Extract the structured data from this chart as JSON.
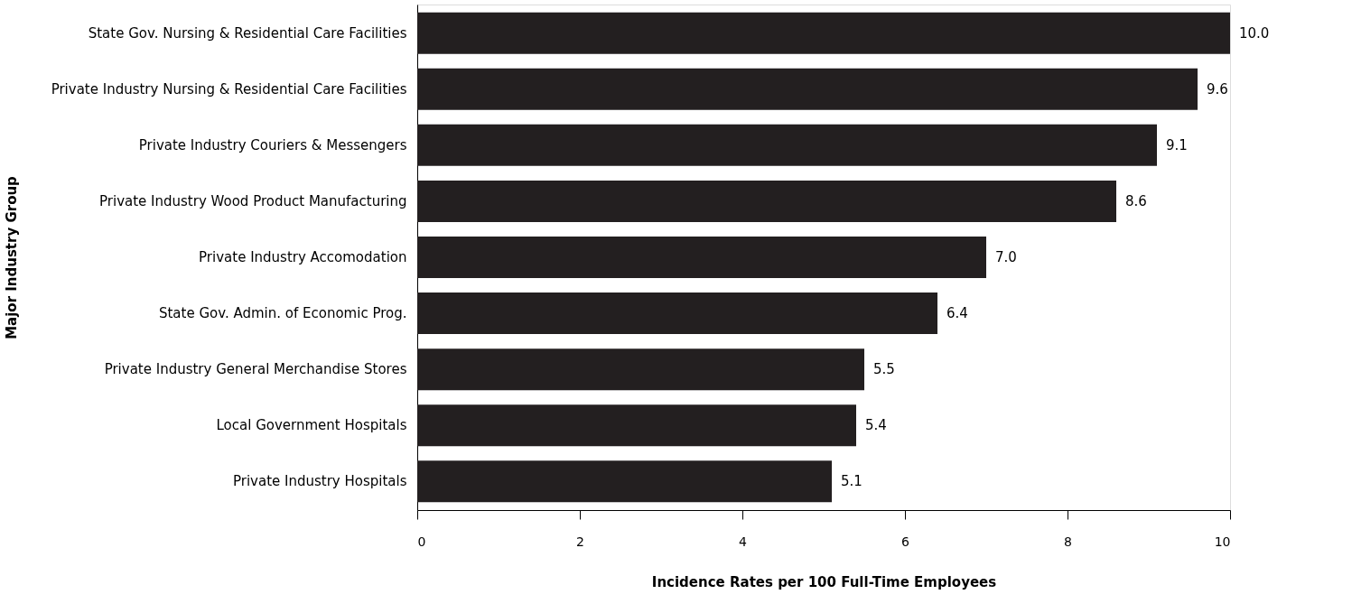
{
  "chart_data": {
    "type": "bar",
    "orientation": "horizontal",
    "xlabel": "Incidence Rates per 100 Full-Time Employees",
    "ylabel": "Major Industry Group",
    "categories": [
      "State Gov. Nursing & Residential Care Facilities",
      "Private Industry Nursing & Residential Care Facilities",
      "Private Industry Couriers & Messengers",
      "Private Industry Wood Product Manufacturing",
      "Private Industry Accomodation",
      "State Gov. Admin. of Economic Prog.",
      "Private Industry General Merchandise Stores",
      "Local Government Hospitals",
      "Private Industry Hospitals"
    ],
    "values": [
      10.0,
      9.6,
      9.1,
      8.6,
      7.0,
      6.4,
      5.5,
      5.4,
      5.1
    ],
    "value_labels": [
      "10.0",
      "9.6",
      "9.1",
      "8.6",
      "7.0",
      "6.4",
      "5.5",
      "5.4",
      "5.1"
    ],
    "color": "#231f20",
    "xlim": [
      0,
      10
    ],
    "xticks": [
      0,
      2,
      4,
      6,
      8,
      10
    ],
    "grid": false
  }
}
